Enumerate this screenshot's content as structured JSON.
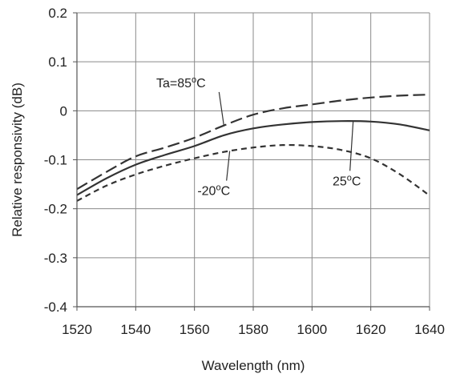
{
  "chart_data": {
    "type": "line",
    "title": "",
    "xlabel": "Wavelength  (nm)",
    "ylabel": "Relative responsivity  (dB)",
    "xlim": [
      1520,
      1640
    ],
    "ylim": [
      -0.4,
      0.2
    ],
    "x_ticks": [
      1520,
      1540,
      1560,
      1580,
      1600,
      1620,
      1640
    ],
    "x_tick_labels": [
      "1520",
      "1540",
      "1560",
      "1580",
      "1600",
      "1620",
      "1640"
    ],
    "y_ticks": [
      -0.4,
      -0.3,
      -0.2,
      -0.1,
      0,
      0.1,
      0.2
    ],
    "y_tick_labels": [
      "-0.4",
      "-0.3",
      "-0.2",
      "-0.1",
      "0",
      "0.1",
      "0.2"
    ],
    "grid": true,
    "legend": "none",
    "series": [
      {
        "name": "Ta=85°C",
        "style": "long-dash",
        "color": "#333333",
        "x": [
          1520,
          1530,
          1540,
          1550,
          1560,
          1570,
          1580,
          1590,
          1600,
          1610,
          1620,
          1630,
          1640
        ],
        "values": [
          -0.16,
          -0.125,
          -0.093,
          -0.075,
          -0.055,
          -0.03,
          -0.008,
          0.005,
          0.013,
          0.021,
          0.027,
          0.031,
          0.033
        ]
      },
      {
        "name": "25°C",
        "style": "solid",
        "color": "#333333",
        "x": [
          1520,
          1530,
          1540,
          1550,
          1560,
          1570,
          1580,
          1590,
          1600,
          1610,
          1620,
          1630,
          1640
        ],
        "values": [
          -0.172,
          -0.138,
          -0.11,
          -0.09,
          -0.072,
          -0.05,
          -0.036,
          -0.028,
          -0.023,
          -0.021,
          -0.022,
          -0.028,
          -0.04
        ]
      },
      {
        "name": "-20°C",
        "style": "short-dash",
        "color": "#333333",
        "x": [
          1520,
          1530,
          1540,
          1550,
          1560,
          1570,
          1580,
          1590,
          1600,
          1610,
          1620,
          1630,
          1640
        ],
        "values": [
          -0.184,
          -0.153,
          -0.13,
          -0.112,
          -0.097,
          -0.084,
          -0.075,
          -0.07,
          -0.072,
          -0.08,
          -0.097,
          -0.13,
          -0.173
        ]
      }
    ],
    "annotations": [
      {
        "text_main": "Ta=85",
        "text_sup": "o",
        "text_tail": "C",
        "series": "Ta=85°C",
        "at_x": 1570,
        "label_x": 1547,
        "label_y": 0.048
      },
      {
        "text_main": "25",
        "text_sup": "o",
        "text_tail": "C",
        "series": "25°C",
        "at_x": 1614,
        "label_x": 1607,
        "label_y": -0.152
      },
      {
        "text_main": "-20",
        "text_sup": "o",
        "text_tail": "C",
        "series": "-20°C",
        "at_x": 1572,
        "label_x": 1561,
        "label_y": -0.172
      }
    ]
  }
}
